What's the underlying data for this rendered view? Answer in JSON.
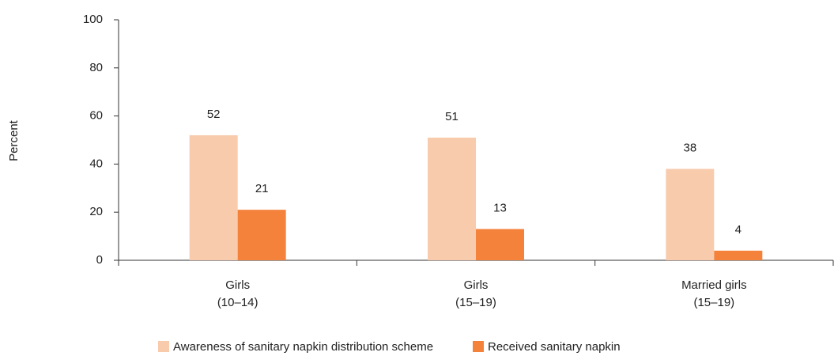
{
  "chart_data": {
    "type": "bar",
    "y_label": "Percent",
    "categories": [
      [
        "Girls",
        "(10–14)"
      ],
      [
        "Girls",
        "(15–19)"
      ],
      [
        "Married girls",
        "(15–19)"
      ]
    ],
    "series": [
      {
        "name": "Awareness of sanitary napkin distribution scheme",
        "color": "#f8cbad",
        "values": [
          52,
          51,
          38
        ]
      },
      {
        "name": "Received sanitary napkin",
        "color": "#f4823b",
        "values": [
          21,
          13,
          4
        ]
      }
    ],
    "ylim": [
      0,
      100
    ],
    "yticks": [
      0,
      20,
      40,
      60,
      80,
      100
    ],
    "grid": false,
    "legend": "bottom"
  }
}
